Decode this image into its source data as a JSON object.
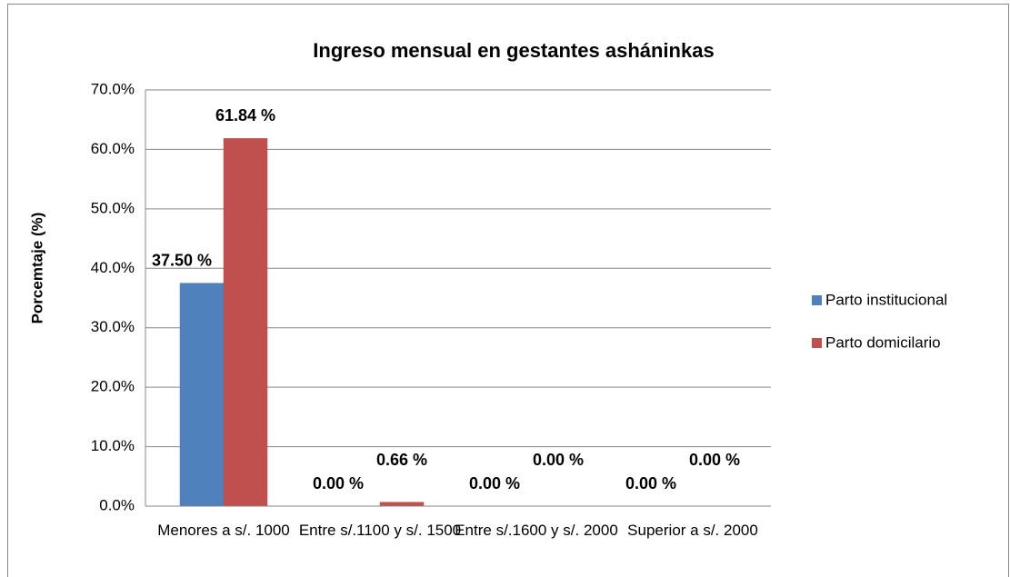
{
  "chart_data": {
    "type": "bar",
    "title": "Ingreso mensual en gestantes asháninkas",
    "y_label": "Porcemtaje (%)",
    "categories": [
      "Menores a s/. 1000",
      "Entre s/.1100 y s/. 1500",
      "Entre s/.1600 y s/. 2000",
      "Superior a s/. 2000"
    ],
    "series": [
      {
        "name": "Parto institucional",
        "color": "#4f81bd",
        "values": [
          37.5,
          0,
          0,
          0
        ],
        "value_labels": [
          "37.50 %",
          "0.00 %",
          "0.00 %",
          "0.00 %"
        ]
      },
      {
        "name": "Parto domicilario",
        "color": "#c0504d",
        "values": [
          61.84,
          0.66,
          0,
          0
        ],
        "value_labels": [
          "61.84 %",
          "0.66 %",
          "0.00 %",
          "0.00 %"
        ]
      }
    ],
    "ylim": [
      0,
      70
    ],
    "yticks": [
      {
        "value": 0,
        "label": "0.0%"
      },
      {
        "value": 10,
        "label": "10.0%"
      },
      {
        "value": 20,
        "label": "20.0%"
      },
      {
        "value": 30,
        "label": "30.0%"
      },
      {
        "value": 40,
        "label": "40.0%"
      },
      {
        "value": 50,
        "label": "50.0%"
      },
      {
        "value": 60,
        "label": "60.0%"
      },
      {
        "value": 70,
        "label": "70.0%"
      }
    ],
    "grid": true,
    "legend": "right"
  }
}
